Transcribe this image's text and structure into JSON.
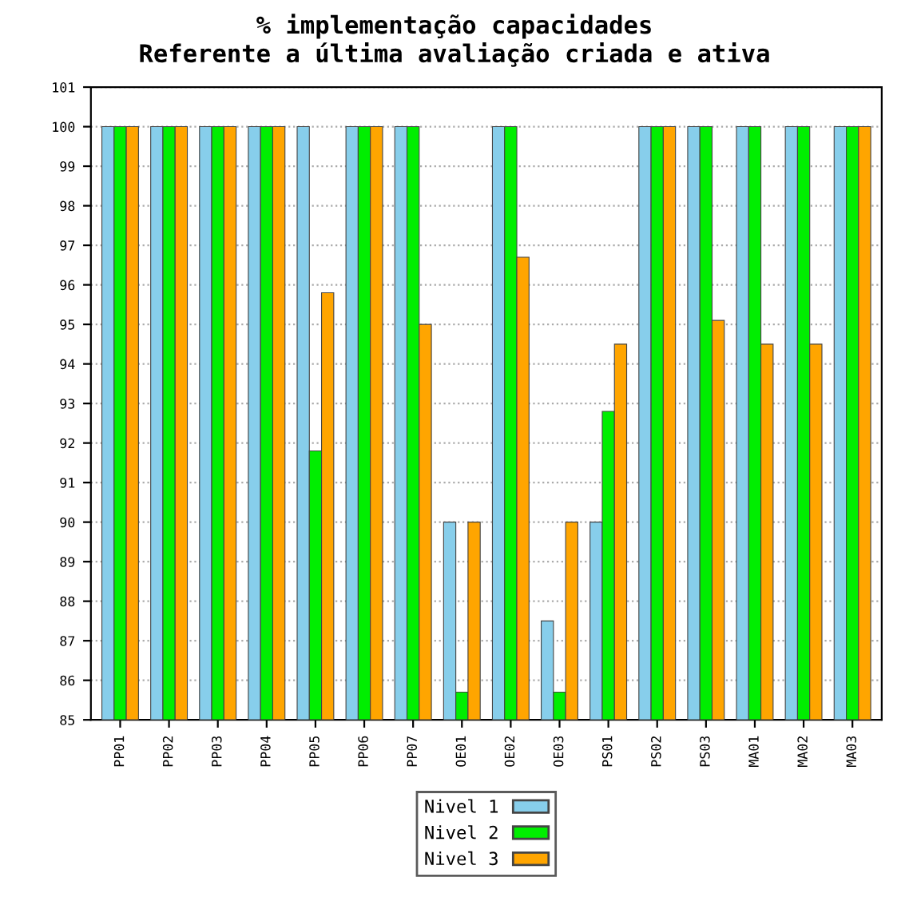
{
  "chart_data": {
    "type": "bar",
    "title": "% implementação capacidades\nReferente a última avaliação criada e ativa",
    "categories": [
      "PP01",
      "PP02",
      "PP03",
      "PP04",
      "PP05",
      "PP06",
      "PP07",
      "OE01",
      "OE02",
      "OE03",
      "PS01",
      "PS02",
      "PS03",
      "MA01",
      "MA02",
      "MA03"
    ],
    "series": [
      {
        "name": "Nivel 1",
        "color": "#87ceeb",
        "values": [
          100,
          100,
          100,
          100,
          100,
          100,
          100,
          90,
          100,
          87.5,
          90,
          100,
          100,
          100,
          100,
          100
        ]
      },
      {
        "name": "Nivel 2",
        "color": "#00ee00",
        "values": [
          100,
          100,
          100,
          100,
          91.8,
          100,
          100,
          85.7,
          100,
          85.7,
          92.8,
          100,
          100,
          100,
          100,
          100
        ]
      },
      {
        "name": "Nivel 3",
        "color": "#ffa500",
        "values": [
          100,
          100,
          100,
          100,
          95.8,
          100,
          95,
          90,
          96.7,
          90,
          94.5,
          100,
          95.1,
          94.5,
          94.5,
          100
        ]
      }
    ],
    "ylim": [
      85,
      101
    ],
    "yticks": [
      85,
      86,
      87,
      88,
      89,
      90,
      91,
      92,
      93,
      94,
      95,
      96,
      97,
      98,
      99,
      100,
      101
    ],
    "grid": "y",
    "legend": "bottom"
  }
}
